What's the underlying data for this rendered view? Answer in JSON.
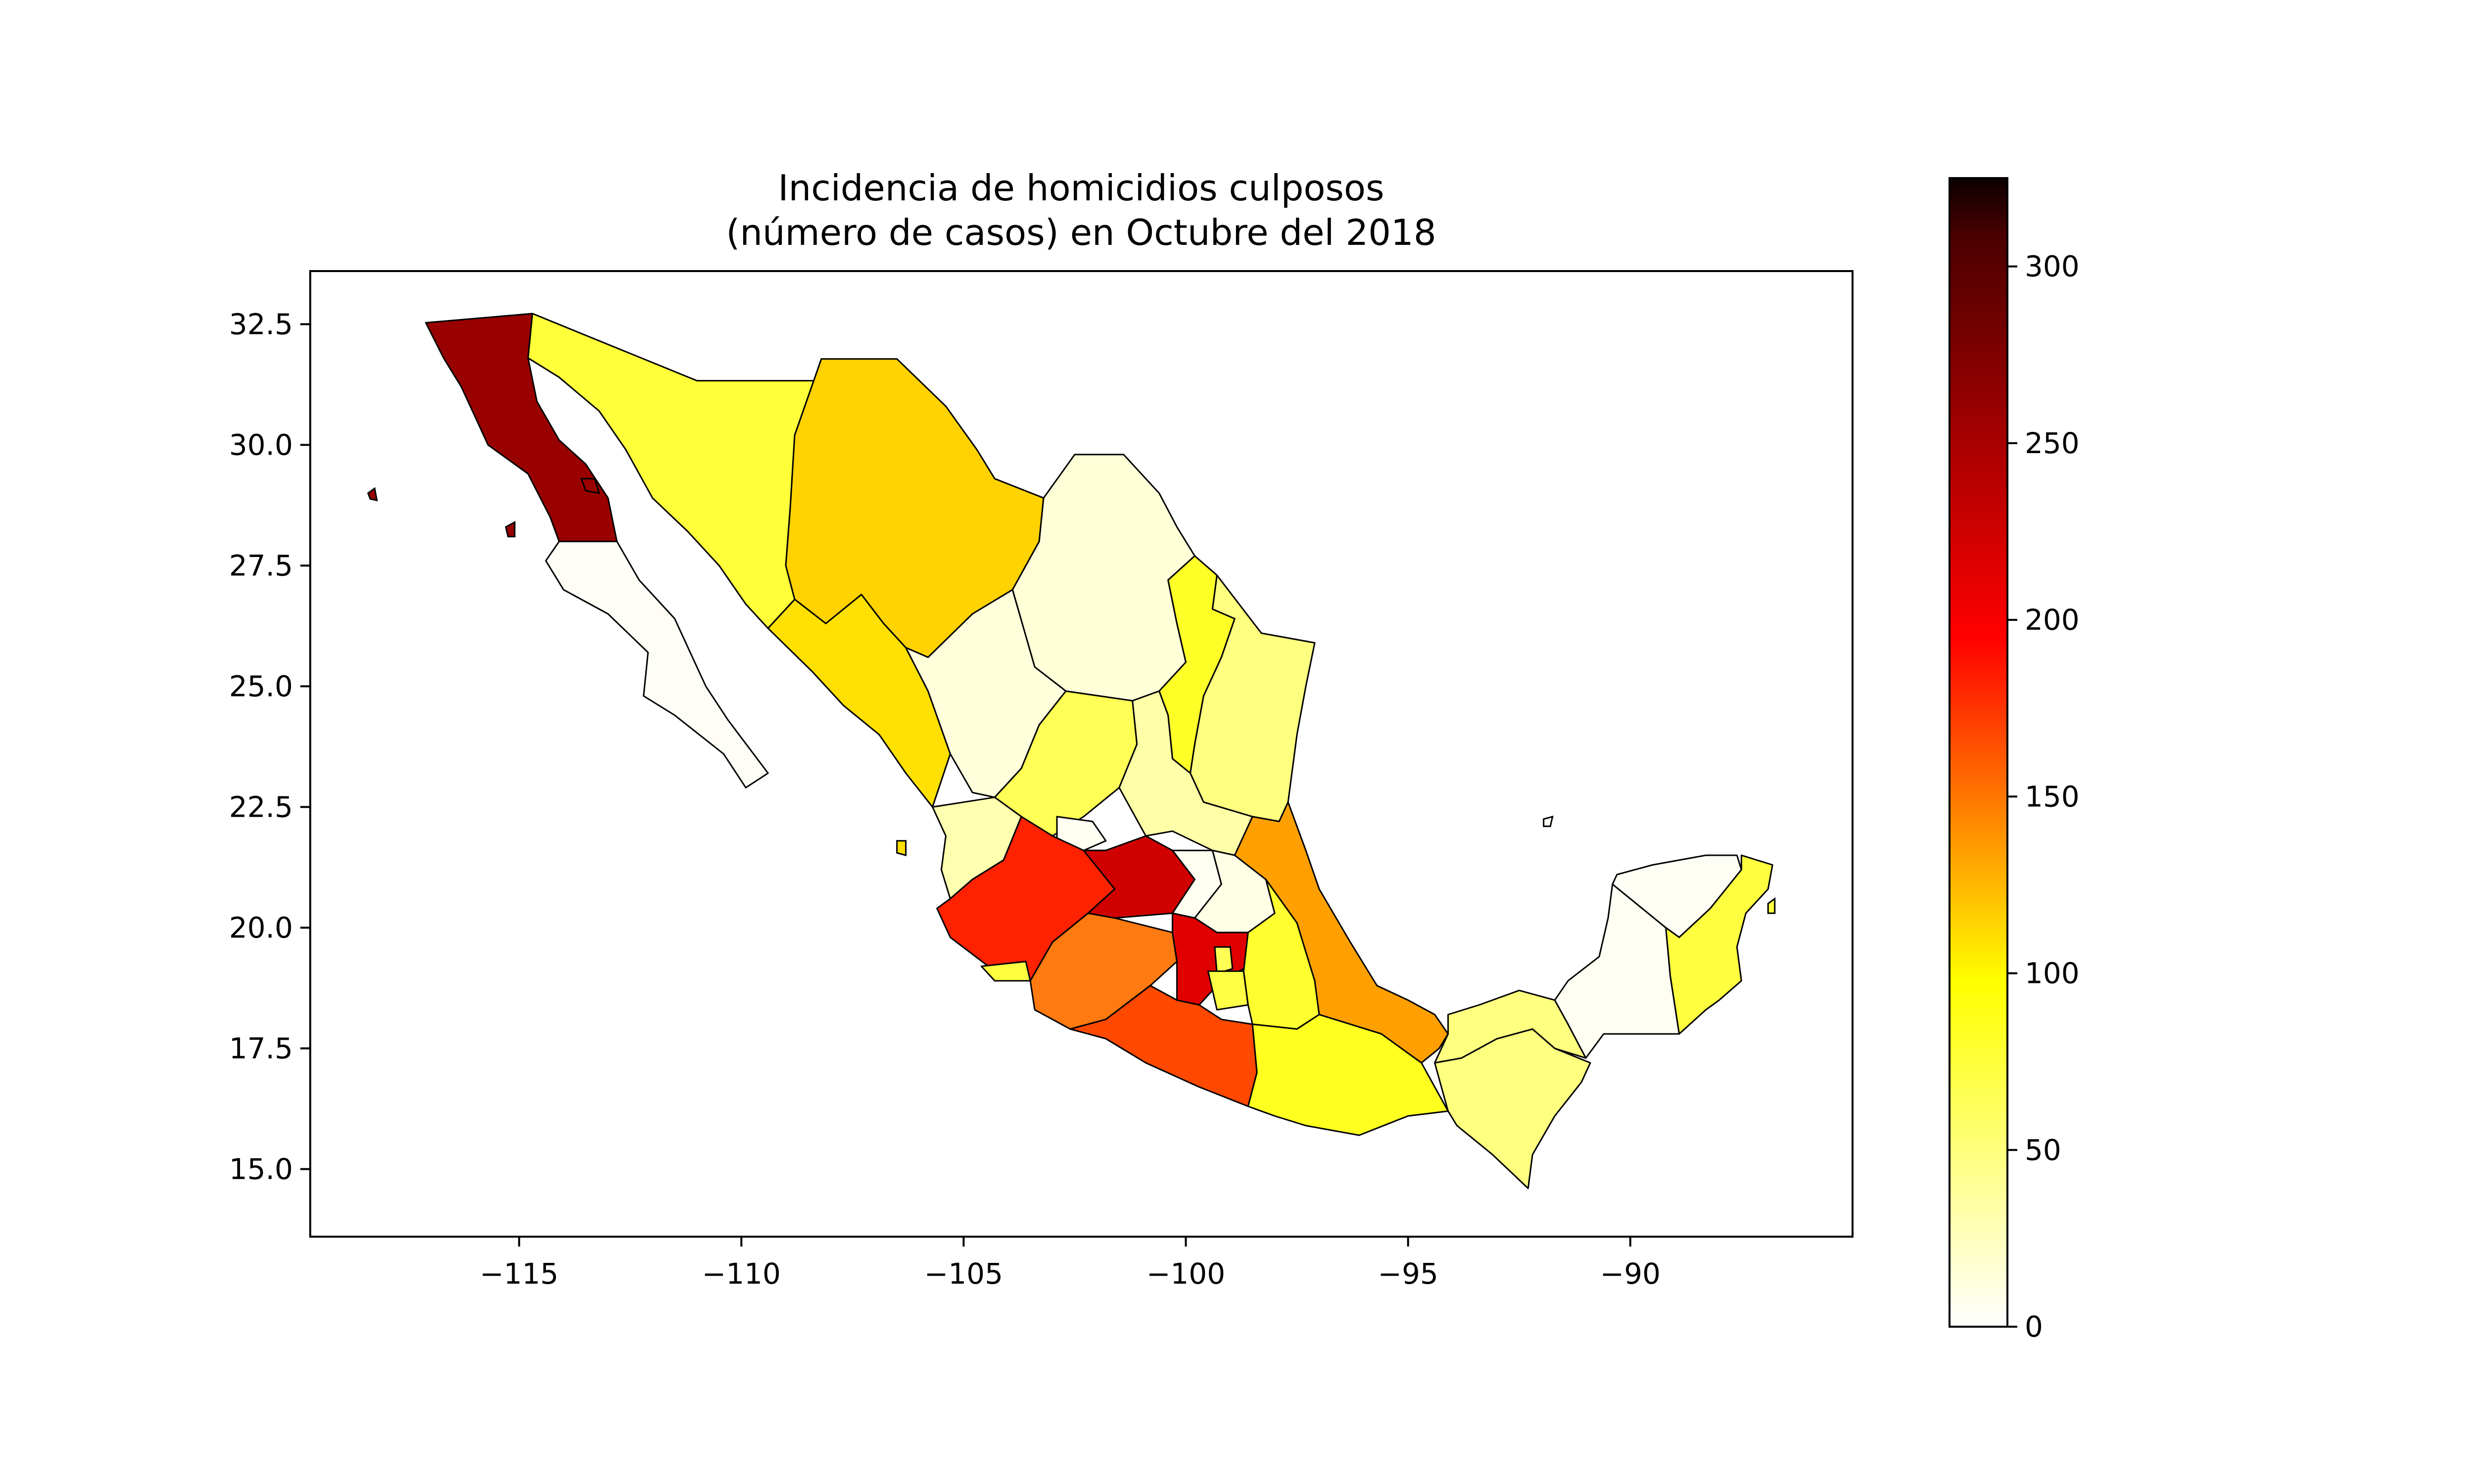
{
  "chart_data": {
    "type": "choropleth",
    "title": "Incidencia de homicidios culposos\n(número de casos) en Octubre del 2018",
    "title_lines": [
      "Incidencia de homicidios culposos",
      "(número de casos) en Octubre del 2018"
    ],
    "xlim": [
      -119.7,
      -85.0
    ],
    "ylim": [
      13.6,
      33.6
    ],
    "x_ticks": [
      -115,
      -110,
      -105,
      -100,
      -95,
      -90
    ],
    "x_tick_labels": [
      "−115",
      "−110",
      "−105",
      "−100",
      "−95",
      "−90"
    ],
    "y_ticks": [
      15.0,
      17.5,
      20.0,
      22.5,
      25.0,
      27.5,
      30.0,
      32.5
    ],
    "y_tick_labels": [
      "15.0",
      "17.5",
      "20.0",
      "22.5",
      "25.0",
      "27.5",
      "30.0",
      "32.5"
    ],
    "colorbar": {
      "colormap": "hot_r",
      "range": [
        0,
        325
      ],
      "ticks": [
        0,
        50,
        100,
        150,
        200,
        250,
        300
      ],
      "tick_labels": [
        "0",
        "50",
        "100",
        "150",
        "200",
        "250",
        "300"
      ]
    },
    "regions": [
      {
        "id": "baja-california",
        "value": 285,
        "color": "#990000"
      },
      {
        "id": "baja-california-sur",
        "value": 3,
        "color": "#fffef6"
      },
      {
        "id": "sonora",
        "value": 65,
        "color": "#ffff3a"
      },
      {
        "id": "chihuahua",
        "value": 107,
        "color": "#ffd200"
      },
      {
        "id": "coahuila",
        "value": 18,
        "color": "#ffffd8"
      },
      {
        "id": "nuevo-leon",
        "value": 72,
        "color": "#ffff28"
      },
      {
        "id": "tamaulipas",
        "value": 38,
        "color": "#ffff80"
      },
      {
        "id": "sinaloa",
        "value": 95,
        "color": "#ffe000"
      },
      {
        "id": "durango",
        "value": 16,
        "color": "#ffffdc"
      },
      {
        "id": "zacatecas",
        "value": 55,
        "color": "#ffff55"
      },
      {
        "id": "san-luis-potosi",
        "value": 28,
        "color": "#ffffa8"
      },
      {
        "id": "nayarit",
        "value": 28,
        "color": "#ffffb0"
      },
      {
        "id": "aguascalientes",
        "value": 4,
        "color": "#fffff2"
      },
      {
        "id": "jalisco",
        "value": 205,
        "color": "#ff2200"
      },
      {
        "id": "colima",
        "value": 62,
        "color": "#ffff40"
      },
      {
        "id": "michoacan",
        "value": 155,
        "color": "#ff7a10"
      },
      {
        "id": "guanajuato",
        "value": 235,
        "color": "#d00000"
      },
      {
        "id": "queretaro",
        "value": 4,
        "color": "#fffff2"
      },
      {
        "id": "hidalgo",
        "value": 8,
        "color": "#ffffe6"
      },
      {
        "id": "estado-de-mexico",
        "value": 225,
        "color": "#e00000"
      },
      {
        "id": "ciudad-de-mexico",
        "value": 55,
        "color": "#ffff55"
      },
      {
        "id": "morelos",
        "value": 60,
        "color": "#ffff45"
      },
      {
        "id": "tlaxcala",
        "value": 60,
        "color": "#ffff45"
      },
      {
        "id": "puebla",
        "value": 68,
        "color": "#ffff30"
      },
      {
        "id": "veracruz",
        "value": 130,
        "color": "#ffa000"
      },
      {
        "id": "guerrero",
        "value": 175,
        "color": "#ff4800"
      },
      {
        "id": "oaxaca",
        "value": 72,
        "color": "#ffff20"
      },
      {
        "id": "chiapas",
        "value": 38,
        "color": "#ffff80"
      },
      {
        "id": "tabasco",
        "value": 38,
        "color": "#ffff80"
      },
      {
        "id": "campeche",
        "value": 3,
        "color": "#fffef2"
      },
      {
        "id": "yucatan",
        "value": 2,
        "color": "#fffef5"
      },
      {
        "id": "quintana-roo",
        "value": 60,
        "color": "#ffff40"
      }
    ]
  }
}
